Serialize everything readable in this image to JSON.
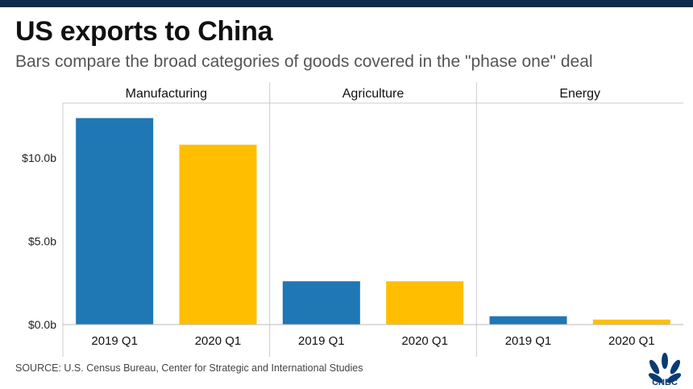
{
  "header": {
    "title": "US exports to China",
    "subtitle": "Bars compare the broad categories of goods covered in the \"phase one\" deal"
  },
  "footer": {
    "source": "SOURCE: U.S. Census Bureau, Center for Strategic and International Studies",
    "logo_text": "CNBC",
    "logo_icon": "nbc-peacock-icon"
  },
  "chart_data": {
    "type": "bar",
    "title": "US exports to China",
    "xlabel": "",
    "ylabel": "",
    "ylim": [
      0,
      13.3
    ],
    "yticks": [
      0,
      5,
      10
    ],
    "ytick_labels": [
      "$0.0b",
      "$5.0b",
      "$10.0b"
    ],
    "grid": "vertical panel dividers",
    "categories": [
      "2019 Q1",
      "2020 Q1"
    ],
    "colors": {
      "2019 Q1": "#1f77b4",
      "2020 Q1": "#ffbf00"
    },
    "panels": [
      {
        "name": "Manufacturing",
        "values": [
          12.4,
          10.8
        ]
      },
      {
        "name": "Agriculture",
        "values": [
          2.6,
          2.6
        ]
      },
      {
        "name": "Energy",
        "values": [
          0.5,
          0.3
        ]
      }
    ]
  }
}
